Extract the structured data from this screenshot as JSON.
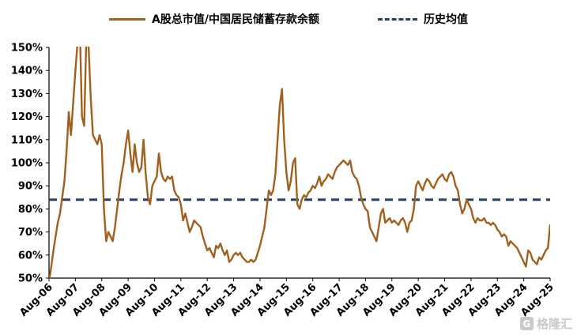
{
  "legend": {
    "series_label": "A股总市值/中国居民储蓄存款余额",
    "avg_label": "历史均值"
  },
  "watermark": {
    "logo_glyph": "G",
    "text": "格隆汇"
  },
  "chart_data": {
    "type": "line",
    "title": "",
    "xlabel": "",
    "ylabel": "",
    "ylim": [
      50,
      150
    ],
    "grid": false,
    "legend_position": "top-center",
    "y_tick_labels": [
      "50%",
      "60%",
      "70%",
      "80%",
      "90%",
      "100%",
      "110%",
      "120%",
      "130%",
      "140%",
      "150%"
    ],
    "x_tick_labels": [
      "Aug-06",
      "Aug-07",
      "Aug-08",
      "Aug-09",
      "Aug-10",
      "Aug-11",
      "Aug-12",
      "Aug-13",
      "Aug-14",
      "Aug-15",
      "Aug-16",
      "Aug-17",
      "Aug-18",
      "Aug-19",
      "Aug-20",
      "Aug-21",
      "Aug-22",
      "Aug-23",
      "Aug-24",
      "Aug-25"
    ],
    "x_tick_interval_months": 12,
    "series": [
      {
        "name": "A股总市值/中国居民储蓄存款余额",
        "color": "#A1611E",
        "frequency": "monthly",
        "start": "Aug-06",
        "values": [
          48,
          55,
          62,
          68,
          74,
          78,
          85,
          92,
          105,
          122,
          112,
          126,
          140,
          152,
          160,
          120,
          116,
          155,
          150,
          128,
          112,
          110,
          108,
          112,
          108,
          80,
          66,
          70,
          68,
          66,
          72,
          80,
          88,
          95,
          100,
          108,
          114,
          104,
          96,
          108,
          100,
          96,
          98,
          110,
          95,
          85,
          82,
          90,
          92,
          94,
          104,
          96,
          93,
          92,
          94,
          93,
          94,
          88,
          86,
          85,
          82,
          75,
          78,
          74,
          70,
          72,
          75,
          74,
          73,
          72,
          68,
          65,
          62,
          63,
          61,
          59,
          64,
          63,
          65,
          62,
          60,
          62,
          57,
          58,
          60,
          61,
          60,
          61,
          59,
          58,
          57,
          57,
          58,
          57,
          58,
          61,
          64,
          68,
          72,
          80,
          88,
          86,
          88,
          95,
          110,
          125,
          132,
          110,
          96,
          88,
          92,
          100,
          102,
          82,
          80,
          84,
          86,
          85,
          87,
          88,
          90,
          89,
          91,
          94,
          90,
          92,
          93,
          95,
          94,
          93,
          96,
          98,
          99,
          100,
          101,
          100,
          99,
          101,
          96,
          94,
          93,
          90,
          85,
          82,
          80,
          79,
          72,
          70,
          68,
          66,
          72,
          78,
          80,
          74,
          75,
          76,
          74,
          75,
          74,
          73,
          75,
          76,
          74,
          70,
          74,
          75,
          80,
          90,
          92,
          90,
          88,
          91,
          93,
          92,
          90,
          89,
          91,
          93,
          94,
          95,
          93,
          92,
          95,
          96,
          94,
          90,
          88,
          82,
          78,
          80,
          84,
          82,
          80,
          76,
          74,
          76,
          75,
          75,
          76,
          74,
          74,
          73,
          74,
          73,
          71,
          70,
          68,
          69,
          68,
          64,
          66,
          65,
          64,
          63,
          61,
          59,
          57,
          55,
          62,
          61,
          58,
          57,
          56,
          59,
          58,
          60,
          62,
          63,
          73
        ]
      }
    ],
    "average_line": {
      "name": "历史均值",
      "value": 84,
      "color": "#24406B",
      "style": "dashed"
    }
  }
}
